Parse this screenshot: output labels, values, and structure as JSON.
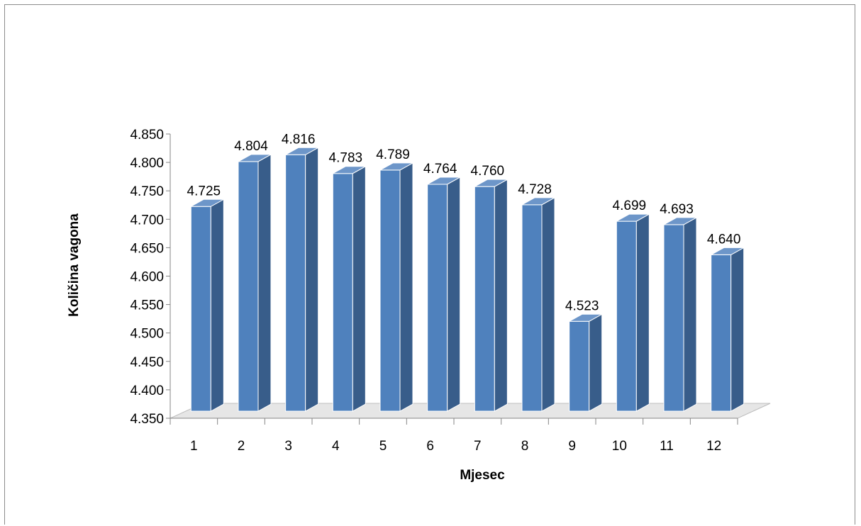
{
  "chart_data": {
    "type": "bar",
    "style": "3d-clustered-column",
    "title": "",
    "xlabel": "Mjesec",
    "ylabel": "Količina vagona",
    "categories": [
      "1",
      "2",
      "3",
      "4",
      "5",
      "6",
      "7",
      "8",
      "9",
      "10",
      "11",
      "12"
    ],
    "values": [
      4725,
      4804,
      4816,
      4783,
      4789,
      4764,
      4760,
      4728,
      4523,
      4699,
      4693,
      4640
    ],
    "data_labels": [
      "4.725",
      "4.804",
      "4.816",
      "4.783",
      "4.789",
      "4.764",
      "4.760",
      "4.728",
      "4.523",
      "4.699",
      "4.693",
      "4.640"
    ],
    "ylim": [
      4350,
      4850
    ],
    "y_ticks": [
      4350,
      4400,
      4450,
      4500,
      4550,
      4600,
      4650,
      4700,
      4750,
      4800,
      4850
    ],
    "y_tick_labels": [
      "4.350",
      "4.400",
      "4.450",
      "4.500",
      "4.550",
      "4.600",
      "4.650",
      "4.700",
      "4.750",
      "4.800",
      "4.850"
    ],
    "grid": false,
    "legend": "none",
    "colors": {
      "bar_front": "#4f81bd",
      "bar_side": "#385d8a",
      "bar_top": "#6d96c9",
      "floor": "#e6e6e6",
      "axis": "#868686"
    }
  }
}
